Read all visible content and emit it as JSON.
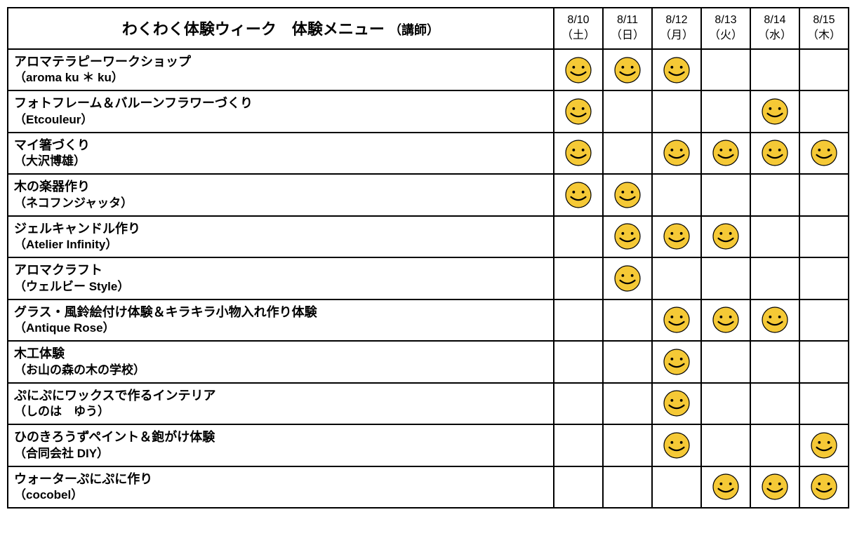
{
  "header": {
    "title_main": "わくわく体験ウィーク　体験メニュー",
    "title_sub": "（講師）"
  },
  "dates": [
    {
      "date": "8/10",
      "dow": "（土）"
    },
    {
      "date": "8/11",
      "dow": "（日）"
    },
    {
      "date": "8/12",
      "dow": "（月）"
    },
    {
      "date": "8/13",
      "dow": "（火）"
    },
    {
      "date": "8/14",
      "dow": "（水）"
    },
    {
      "date": "8/15",
      "dow": "（木）"
    }
  ],
  "rows": [
    {
      "name": "アロマテラピーワークショップ",
      "instructor": "（aroma ku ＊ ku）",
      "days": [
        true,
        true,
        true,
        false,
        false,
        false
      ]
    },
    {
      "name": "フォトフレーム＆バルーンフラワーづくり",
      "instructor": "（Etcouleur）",
      "days": [
        true,
        false,
        false,
        false,
        true,
        false
      ]
    },
    {
      "name": "マイ箸づくり",
      "instructor": "（大沢博雄）",
      "days": [
        true,
        false,
        true,
        true,
        true,
        true
      ]
    },
    {
      "name": "木の楽器作り",
      "instructor": "（ネコフンジャッタ）",
      "days": [
        true,
        true,
        false,
        false,
        false,
        false
      ]
    },
    {
      "name": "ジェルキャンドル作り",
      "instructor": "（Atelier Infinity）",
      "days": [
        false,
        true,
        true,
        true,
        false,
        false
      ]
    },
    {
      "name": "アロマクラフト",
      "instructor": "（ウェルビー Style）",
      "days": [
        false,
        true,
        false,
        false,
        false,
        false
      ]
    },
    {
      "name": "グラス・風鈴絵付け体験＆キラキラ小物入れ作り体験",
      "instructor": "（Antique Rose）",
      "days": [
        false,
        false,
        true,
        true,
        true,
        false
      ]
    },
    {
      "name": "木工体験",
      "instructor": "（お山の森の木の学校）",
      "days": [
        false,
        false,
        true,
        false,
        false,
        false
      ]
    },
    {
      "name": "ぷにぷにワックスで作るインテリア",
      "instructor": "（しのは　ゆう）",
      "days": [
        false,
        false,
        true,
        false,
        false,
        false
      ]
    },
    {
      "name": "ひのきろうずペイント＆鉋がけ体験",
      "instructor": "（合同会社 DIY）",
      "days": [
        false,
        false,
        true,
        false,
        false,
        true
      ]
    },
    {
      "name": "ウォーターぷにぷに作り",
      "instructor": "（cocobel）",
      "days": [
        false,
        false,
        false,
        true,
        true,
        true
      ]
    }
  ],
  "style": {
    "smiley_fill": "#f5c936",
    "smiley_stroke": "#000000",
    "smiley_size": 38,
    "border_color": "#000000",
    "background": "#ffffff",
    "title_fontsize": 22,
    "sub_fontsize": 18,
    "date_fontsize": 16,
    "menu_fontsize": 18,
    "instructor_fontsize": 17
  }
}
